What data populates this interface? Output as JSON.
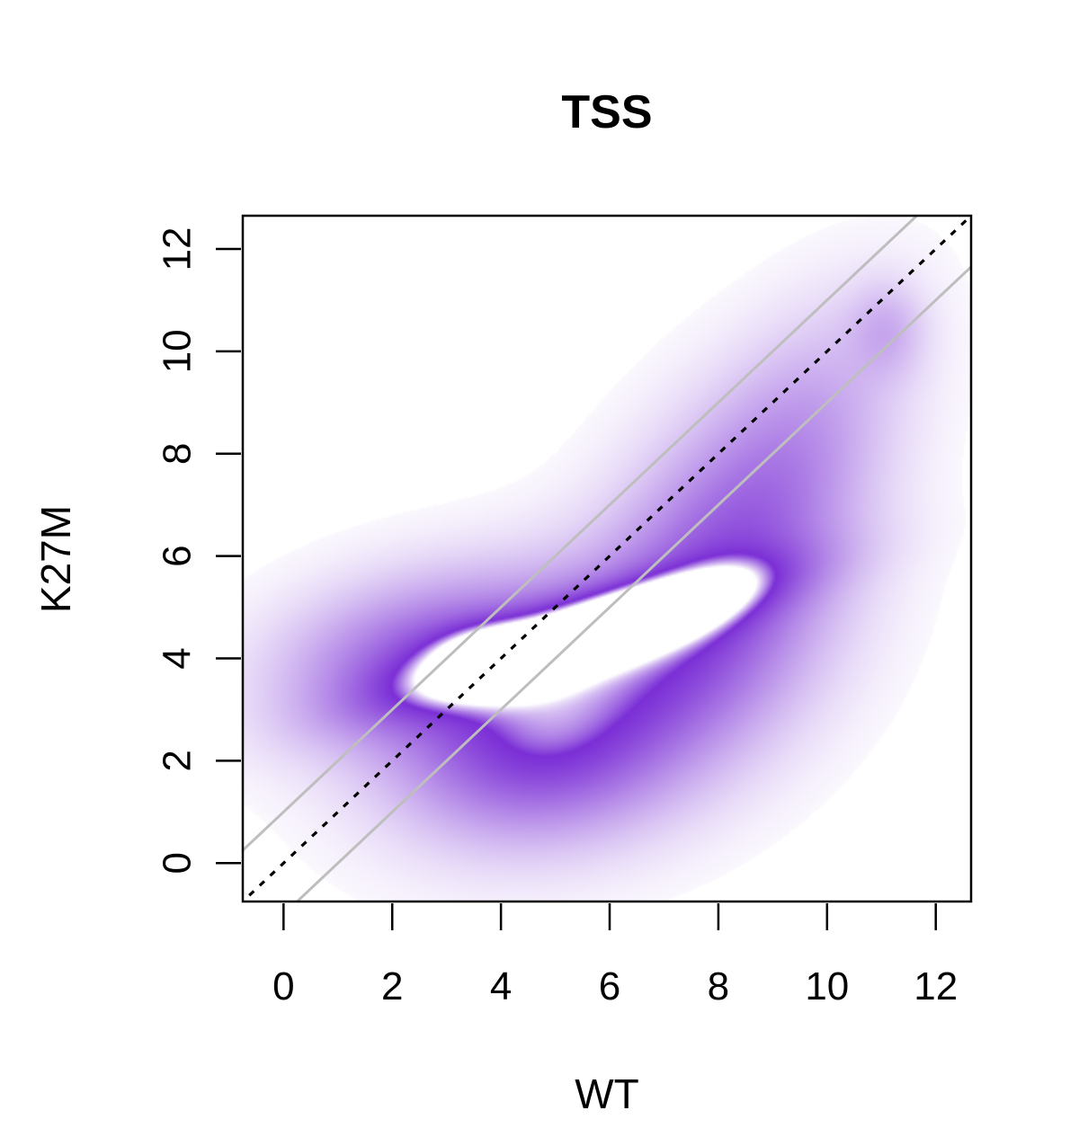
{
  "chart_data": {
    "type": "heatmap",
    "title": "TSS",
    "xlabel": "WT",
    "ylabel": "K27M",
    "xlim": [
      -0.75,
      12.65
    ],
    "ylim": [
      -0.75,
      12.65
    ],
    "x_ticks": [
      0,
      2,
      4,
      6,
      8,
      10,
      12
    ],
    "y_ticks": [
      0,
      2,
      4,
      6,
      8,
      10,
      12
    ],
    "grid": false,
    "legend": "none",
    "density_color": "#7b2fd6",
    "density_peak_color": "#ffffff",
    "density_blobs": [
      {
        "cx": 2.6,
        "cy": 3.95,
        "sx": 1.7,
        "sy": 1.0,
        "rot": 12,
        "w": 0.22
      },
      {
        "cx": 5.6,
        "cy": 3.3,
        "sx": 2.1,
        "sy": 1.4,
        "rot": 25,
        "w": 0.28
      },
      {
        "cx": 4.5,
        "cy": 2.0,
        "sx": 1.5,
        "sy": 1.0,
        "rot": 0,
        "w": 0.12
      },
      {
        "cx": 8.2,
        "cy": 5.8,
        "sx": 1.3,
        "sy": 2.0,
        "rot": -25,
        "w": 0.22
      },
      {
        "cx": 9.6,
        "cy": 8.6,
        "sx": 1.0,
        "sy": 1.8,
        "rot": -30,
        "w": 0.08
      },
      {
        "cx": 11.1,
        "cy": 10.4,
        "sx": 0.45,
        "sy": 0.6,
        "rot": 0,
        "w": 0.07
      },
      {
        "cx": 5.5,
        "cy": 4.45,
        "sx": 2.2,
        "sy": 0.45,
        "rot": 18,
        "w": 0.38
      },
      {
        "cx": 6.3,
        "cy": 4.7,
        "sx": 1.25,
        "sy": 0.33,
        "rot": 20,
        "w": 0.3
      },
      {
        "cx": 4.0,
        "cy": 4.0,
        "sx": 0.7,
        "sy": 0.4,
        "rot": 0,
        "w": 0.22
      }
    ],
    "reference_lines": [
      {
        "name": "identity",
        "intercept": 0,
        "slope": 1,
        "style": "dotted",
        "color": "#000000"
      },
      {
        "name": "upper",
        "intercept": 1,
        "slope": 1,
        "style": "solid",
        "color": "#bebebe"
      },
      {
        "name": "lower",
        "intercept": -1,
        "slope": 1,
        "style": "solid",
        "color": "#bebebe"
      }
    ]
  }
}
